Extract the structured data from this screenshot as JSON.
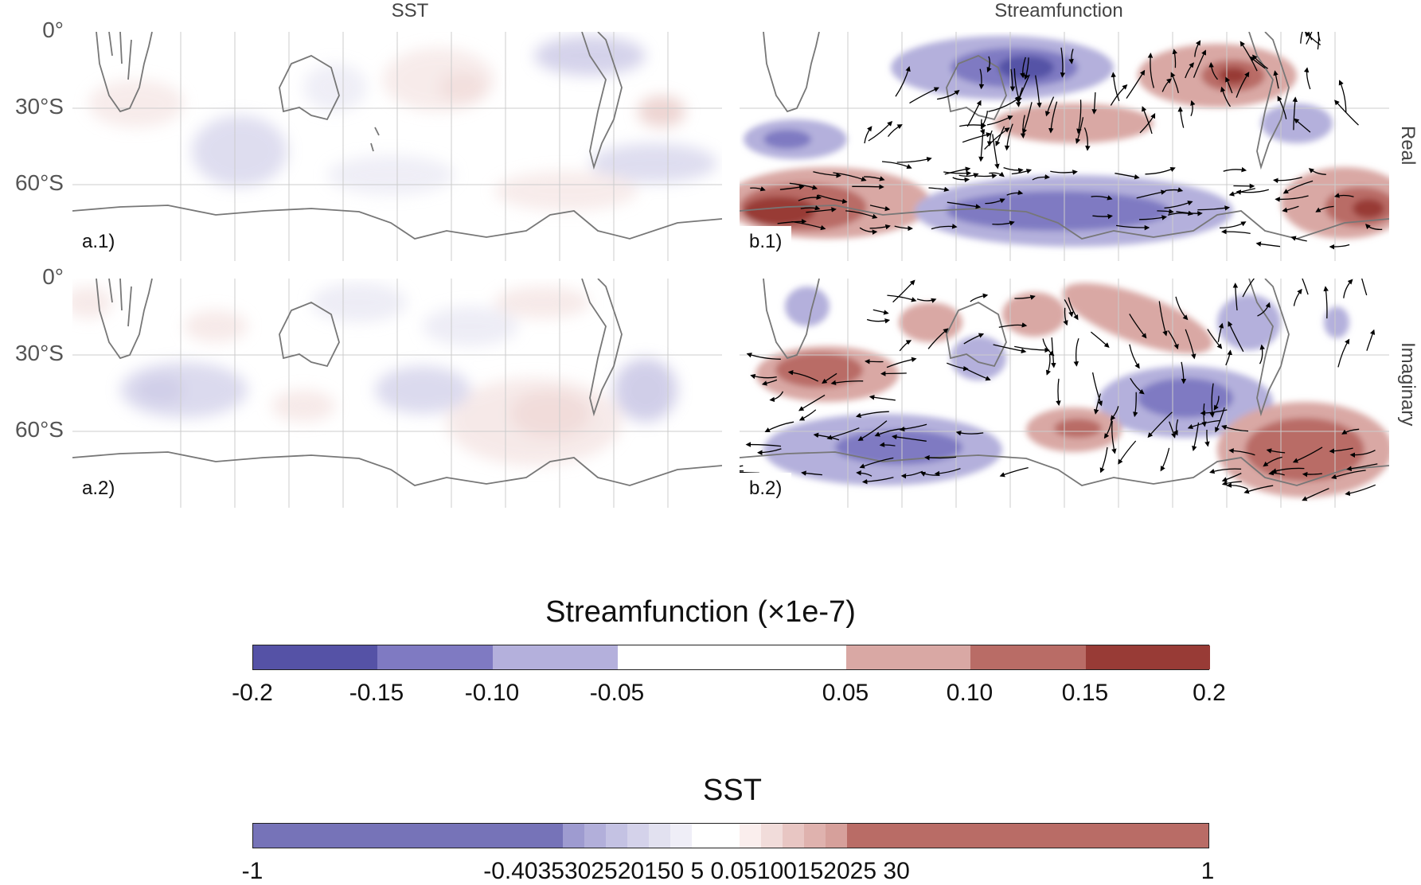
{
  "titles": {
    "sst": "SST",
    "streamfunction": "Streamfunction"
  },
  "rows": {
    "real": "Real",
    "imaginary": "Imaginary"
  },
  "lat_labels": [
    "0°",
    "30°S",
    "60°S"
  ],
  "panels": [
    {
      "id": "a1",
      "label": "a.1)"
    },
    {
      "id": "b1",
      "label": "b.1)"
    },
    {
      "id": "a2",
      "label": "a.2)"
    },
    {
      "id": "b2",
      "label": "b.2)"
    }
  ],
  "colorbars": {
    "streamfunction": {
      "title": "Streamfunction (×1e-7)",
      "levels": [
        -0.2,
        -0.15,
        -0.1,
        -0.05,
        0.05,
        0.1,
        0.15,
        0.2
      ],
      "tick_labels": [
        "-0.2",
        "-0.15",
        "-0.10",
        "-0.05",
        "0.05",
        "0.10",
        "0.15",
        "0.2"
      ],
      "colors": [
        "#5552a6",
        "#7f7ac2",
        "#b4b0dc",
        "#ffffff",
        "#d9a8a4",
        "#b96c66",
        "#983b36"
      ]
    },
    "sst": {
      "title": "SST",
      "tick_labels_left": "-1",
      "tick_labels_mid": "-0.4035302520150 5 0.05100152025 30",
      "tick_labels_right": "1",
      "colors": [
        "#7673b8",
        "#9e9bd0",
        "#b2afda",
        "#c4c2e3",
        "#d4d2ea",
        "#e2e1f0",
        "#efeef7",
        "#ffffff",
        "#faeeed",
        "#f1dcda",
        "#e8c6c3",
        "#dfb2ae",
        "#d6a09b",
        "#b96c66"
      ],
      "widths": [
        360,
        25,
        25,
        25,
        25,
        25,
        25,
        55,
        25,
        25,
        25,
        25,
        25,
        420
      ]
    }
  },
  "palette": {
    "blue": "#7f7ac2",
    "red": "#b96c66",
    "land_line": "#777777",
    "grid": "#cccccc"
  }
}
